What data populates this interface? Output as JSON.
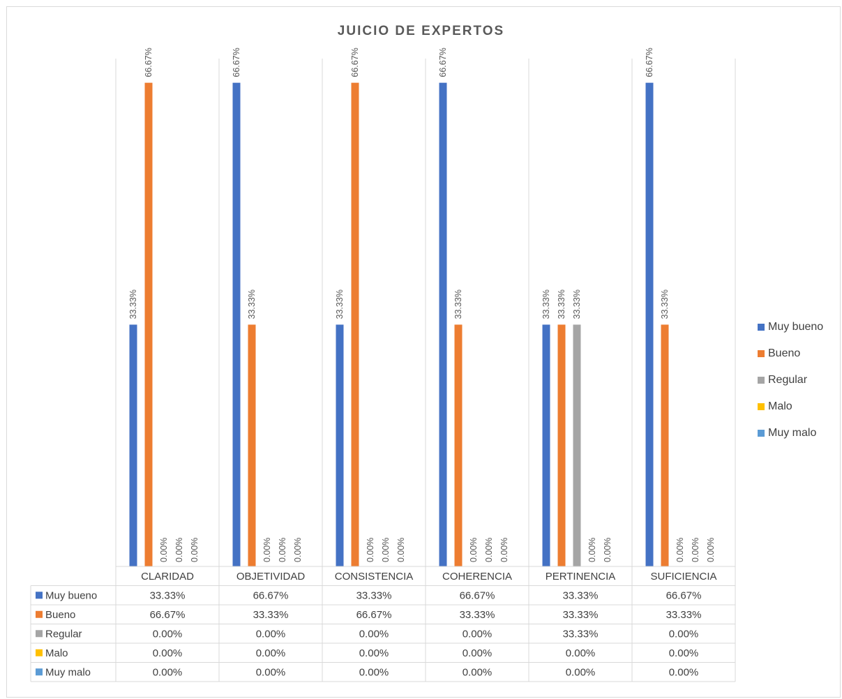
{
  "chart_data": {
    "type": "bar",
    "title": "JUICIO DE EXPERTOS",
    "categories": [
      "CLARIDAD",
      "OBJETIVIDAD",
      "CONSISTENCIA",
      "COHERENCIA",
      "PERTINENCIA",
      "SUFICIENCIA"
    ],
    "series": [
      {
        "name": "Muy bueno",
        "color": "#4472c4",
        "values": [
          33.33,
          66.67,
          33.33,
          66.67,
          33.33,
          66.67
        ],
        "labels": [
          "33.33%",
          "66.67%",
          "33.33%",
          "66.67%",
          "33.33%",
          "66.67%"
        ]
      },
      {
        "name": "Bueno",
        "color": "#ed7d31",
        "values": [
          66.67,
          33.33,
          66.67,
          33.33,
          33.33,
          33.33
        ],
        "labels": [
          "66.67%",
          "33.33%",
          "66.67%",
          "33.33%",
          "33.33%",
          "33.33%"
        ]
      },
      {
        "name": "Regular",
        "color": "#a5a5a5",
        "values": [
          0,
          0,
          0,
          0,
          33.33,
          0
        ],
        "labels": [
          "0.00%",
          "0.00%",
          "0.00%",
          "0.00%",
          "33.33%",
          "0.00%"
        ]
      },
      {
        "name": "Malo",
        "color": "#ffc000",
        "values": [
          0,
          0,
          0,
          0,
          0,
          0
        ],
        "labels": [
          "0.00%",
          "0.00%",
          "0.00%",
          "0.00%",
          "0.00%",
          "0.00%"
        ]
      },
      {
        "name": "Muy malo",
        "color": "#5b9bd5",
        "values": [
          0,
          0,
          0,
          0,
          0,
          0
        ],
        "labels": [
          "0.00%",
          "0.00%",
          "0.00%",
          "0.00%",
          "0.00%",
          "0.00%"
        ]
      }
    ],
    "ylim": [
      0,
      70
    ],
    "grid": false,
    "legend": "right",
    "data_table": true
  }
}
